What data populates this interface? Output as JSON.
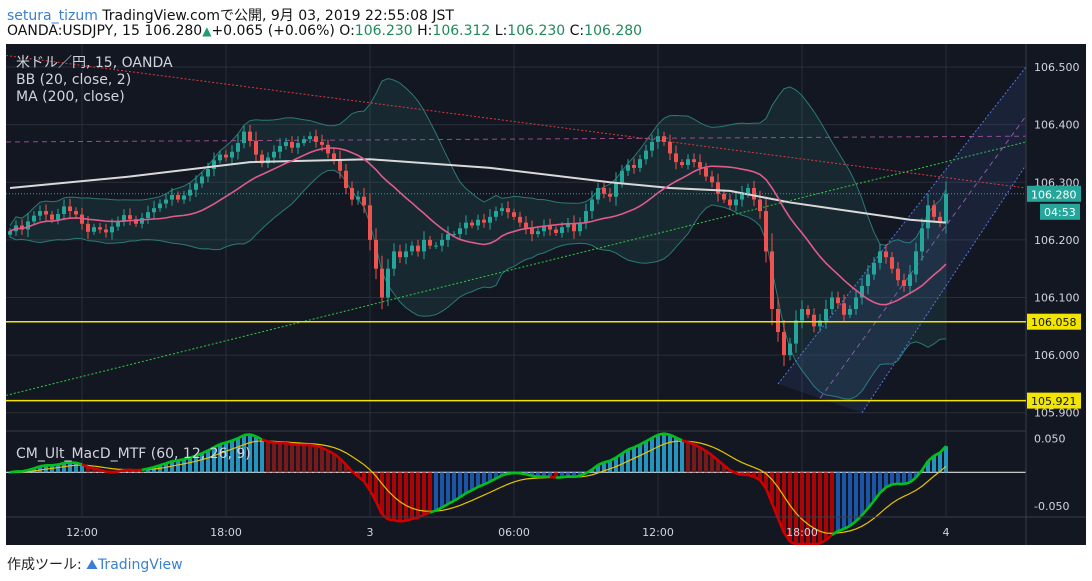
{
  "header": {
    "author": "setura_tizum",
    "published": "TradingView.comで公開, 9月 03, 2019 22:55:08 JST",
    "symbol": "OANDA:USDJPY, 15",
    "last": "106.280",
    "change": "+0.065 (+0.06%)",
    "o_label": "O:",
    "o": "106.230",
    "h_label": "H:",
    "h": "106.312",
    "l_label": "L:",
    "l": "106.230",
    "c_label": "C:",
    "c": "106.280"
  },
  "legend": {
    "line1": "米ドル／円, 15, OANDA",
    "line2": "BB (20, close, 2)",
    "line3": "MA (200, close)",
    "macd": "CM_Ult_MacD_MTF (60, 12, 26, 9)"
  },
  "footer": {
    "label": "作成ツール:",
    "brand": "TradingView"
  },
  "colors": {
    "background": "#131722",
    "up": "#26a69a",
    "down": "#ef5350",
    "bb_basis": "#e05a8a",
    "bb_band": "#2a7a74",
    "ma": "#d9d9d9",
    "support": "#f2e600",
    "trend_down": "#d93a3a",
    "trend_up": "#2ecc40",
    "channel": "#5577dd",
    "macd_line": "#00c21a",
    "macd_line_down": "#d00000",
    "signal": "#e6c200"
  },
  "chart_data": {
    "type": "candlestick",
    "title": "米ドル／円, 15, OANDA",
    "price_range": [
      105.87,
      106.54
    ],
    "x_labels": [
      "12:00",
      "18:00",
      "3",
      "06:00",
      "12:00",
      "18:00",
      "4"
    ],
    "x_label_index": [
      12,
      36,
      60,
      84,
      108,
      132,
      156
    ],
    "y_ticks": [
      "106.500",
      "106.400",
      "106.300",
      "106.200",
      "106.100",
      "106.000",
      "105.900"
    ],
    "y_tick_values": [
      106.5,
      106.4,
      106.3,
      106.2,
      106.1,
      106.0,
      105.9
    ],
    "current_price": {
      "value": 106.28,
      "label": "106.280",
      "countdown": "04:53"
    },
    "support_levels": [
      {
        "value": 106.058,
        "label": "106.058"
      },
      {
        "value": 105.921,
        "label": "105.921"
      }
    ],
    "candle_closes": [
      106.215,
      106.225,
      106.218,
      106.232,
      106.242,
      106.25,
      106.244,
      106.235,
      106.245,
      106.258,
      106.25,
      106.244,
      106.228,
      106.214,
      106.222,
      106.218,
      106.213,
      106.223,
      106.233,
      106.243,
      106.236,
      106.228,
      106.238,
      106.248,
      106.255,
      106.263,
      106.27,
      106.278,
      106.27,
      106.277,
      106.287,
      106.298,
      106.31,
      106.323,
      106.338,
      106.348,
      106.343,
      106.353,
      106.368,
      106.388,
      106.372,
      106.348,
      106.333,
      106.343,
      106.353,
      106.363,
      106.37,
      106.36,
      106.368,
      106.375,
      106.38,
      106.37,
      106.365,
      106.35,
      106.34,
      106.32,
      106.29,
      106.27,
      106.275,
      106.26,
      106.2,
      106.15,
      106.1,
      106.15,
      106.18,
      106.17,
      106.18,
      106.19,
      106.18,
      106.2,
      106.19,
      106.19,
      106.2,
      106.21,
      106.21,
      106.22,
      106.23,
      106.225,
      106.235,
      106.23,
      106.24,
      106.25,
      106.255,
      106.248,
      106.24,
      106.23,
      106.22,
      106.21,
      106.215,
      106.225,
      106.218,
      106.212,
      106.222,
      106.228,
      106.215,
      106.23,
      106.25,
      106.27,
      106.29,
      106.28,
      106.275,
      106.3,
      106.32,
      106.33,
      106.325,
      106.34,
      106.355,
      106.37,
      106.38,
      106.37,
      106.35,
      106.335,
      106.33,
      106.34,
      106.335,
      106.325,
      106.31,
      106.3,
      106.28,
      106.27,
      106.26,
      106.27,
      106.28,
      106.29,
      106.27,
      106.25,
      106.18,
      106.08,
      106.04,
      106.0,
      106.02,
      106.06,
      106.08,
      106.07,
      106.05,
      106.06,
      106.08,
      106.1,
      106.09,
      106.07,
      106.08,
      106.1,
      106.12,
      106.14,
      106.16,
      106.18,
      106.17,
      106.15,
      106.13,
      106.12,
      106.14,
      106.18,
      106.22,
      106.26,
      106.24,
      106.23,
      106.28
    ],
    "ma200_points": [
      [
        0,
        106.29
      ],
      [
        20,
        106.31
      ],
      [
        40,
        106.335
      ],
      [
        60,
        106.34
      ],
      [
        80,
        106.325
      ],
      [
        100,
        106.3
      ],
      [
        110,
        106.29
      ],
      [
        120,
        106.285
      ],
      [
        130,
        106.265
      ],
      [
        140,
        106.25
      ],
      [
        150,
        106.235
      ],
      [
        156,
        106.23
      ]
    ],
    "macd_range": [
      -0.065,
      0.06
    ],
    "macd_ticks": [
      "0.050",
      "-0.050"
    ],
    "macd_tick_values": [
      0.05,
      -0.05
    ]
  }
}
